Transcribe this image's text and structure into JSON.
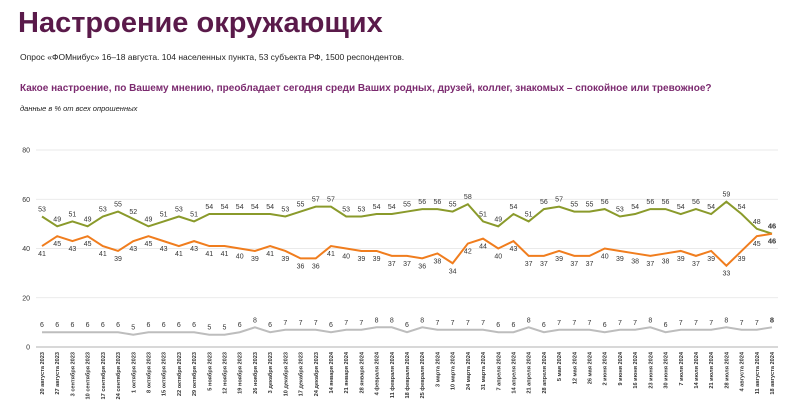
{
  "chart_data": {
    "type": "line",
    "title": "Настроение окружающих",
    "subtitle": "Опрос «ФОМнибус» 16–18 августа. 104 населенных пункта, 53 субъекта РФ, 1500 респондентов.",
    "question": "Какое настроение, по Вашему мнению, преобладает сегодня среди Ваших родных, друзей, коллег, знакомых – спокойное или тревожное?",
    "note": "данные в % от всех опрошенных",
    "categories": [
      "20 августа 2023",
      "27 августа 2023",
      "3 сентября 2023",
      "10 сентября 2023",
      "17 сентября 2023",
      "24 сентября 2023",
      "1 октября 2023",
      "8 октября 2023",
      "15 октября 2023",
      "22 октября 2023",
      "29 октября 2023",
      "5 ноября 2023",
      "12 ноября 2023",
      "19 ноября 2023",
      "26 ноября 2023",
      "3 декабря 2023",
      "10 декабря 2023",
      "17 декабря 2023",
      "24 декабря 2023",
      "14 января 2024",
      "21 января 2024",
      "28 января 2024",
      "4 февраля 2024",
      "11 февраля 2024",
      "18 февраля 2024",
      "25 февраля 2024",
      "3 марта 2024",
      "10 марта 2024",
      "24 марта 2024",
      "31 марта 2024",
      "7 апреля 2024",
      "14 апреля 2024",
      "21 апреля 2024",
      "28 апреля 2024",
      "5 мая 2024",
      "12 мая 2024",
      "26 мая 2024",
      "2 июня 2024",
      "9 июня 2024",
      "16 июня 2024",
      "23 июня 2024",
      "30 июня 2024",
      "7 июля 2024",
      "14 июля 2024",
      "21 июля 2024",
      "28 июля 2024",
      "4 августа 2024",
      "11 августа 2024",
      "18 августа 2024"
    ],
    "series": [
      {
        "color": "#8a9a2b",
        "values": [
          53,
          49,
          51,
          49,
          53,
          55,
          52,
          49,
          51,
          53,
          51,
          54,
          54,
          54,
          54,
          54,
          53,
          55,
          57,
          57,
          53,
          53,
          54,
          54,
          55,
          56,
          56,
          55,
          58,
          51,
          49,
          54,
          51,
          56,
          57,
          55,
          55,
          56,
          53,
          54,
          56,
          56,
          54,
          56,
          54,
          59,
          54,
          48,
          46
        ]
      },
      {
        "color": "#f07d1e",
        "values": [
          41,
          45,
          43,
          45,
          41,
          39,
          43,
          45,
          43,
          41,
          43,
          41,
          41,
          40,
          39,
          41,
          39,
          36,
          36,
          41,
          40,
          39,
          39,
          37,
          37,
          36,
          38,
          34,
          42,
          44,
          40,
          43,
          37,
          37,
          39,
          37,
          37,
          40,
          39,
          38,
          37,
          38,
          39,
          37,
          39,
          33,
          39,
          45,
          46
        ]
      },
      {
        "color": "#bdbdbd",
        "values": [
          6,
          6,
          6,
          6,
          6,
          6,
          5,
          6,
          6,
          6,
          6,
          5,
          5,
          6,
          8,
          6,
          7,
          7,
          7,
          6,
          7,
          7,
          8,
          8,
          6,
          8,
          7,
          7,
          7,
          7,
          6,
          6,
          8,
          6,
          7,
          7,
          7,
          6,
          7,
          7,
          8,
          6,
          7,
          7,
          7,
          8,
          7,
          7,
          8
        ]
      }
    ],
    "ylim": [
      0,
      80
    ],
    "yticks": [
      0,
      20,
      40,
      60,
      80
    ],
    "grid": true
  }
}
